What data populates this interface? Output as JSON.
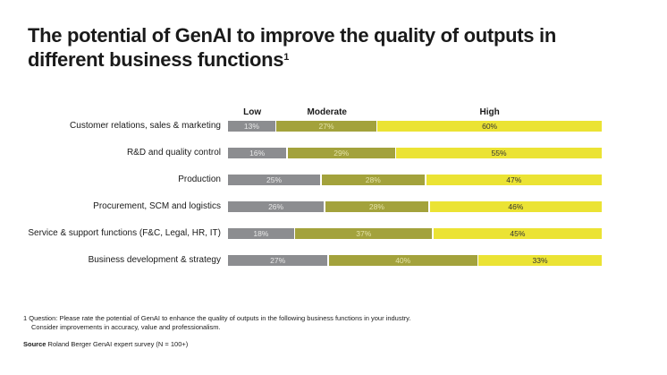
{
  "chart_data": {
    "type": "bar",
    "orientation": "horizontal-stacked-100",
    "title": "The potential of GenAI to improve the quality of outputs in different business functions",
    "title_footnote_marker": "1",
    "categories": [
      "Customer relations, sales & marketing",
      "R&D and quality control",
      "Production",
      "Procurement, SCM and logistics",
      "Service & support functions (F&C, Legal, HR, IT)",
      "Business development & strategy"
    ],
    "series": [
      {
        "name": "Low",
        "color": "#8c8d90",
        "label_color": "#e8e8e8",
        "values": [
          13,
          16,
          25,
          26,
          18,
          27
        ]
      },
      {
        "name": "Moderate",
        "color": "#a3a23c",
        "label_color": "#e4e3a8",
        "values": [
          27,
          29,
          28,
          28,
          37,
          40
        ]
      },
      {
        "name": "High",
        "color": "#ebe334",
        "label_color": "#333333",
        "values": [
          60,
          55,
          47,
          46,
          45,
          33
        ]
      }
    ],
    "value_suffix": "%",
    "xlim": [
      0,
      100
    ],
    "legend": "top"
  },
  "footnote": {
    "line1": "1  Question: Please rate the potential of GenAI to enhance the quality of outputs in the following business functions in your industry.",
    "line2": "Consider improvements in accuracy, value and professionalism."
  },
  "source": {
    "label": "Source",
    "text": " Roland Berger GenAI expert survey (N = 100+)"
  }
}
